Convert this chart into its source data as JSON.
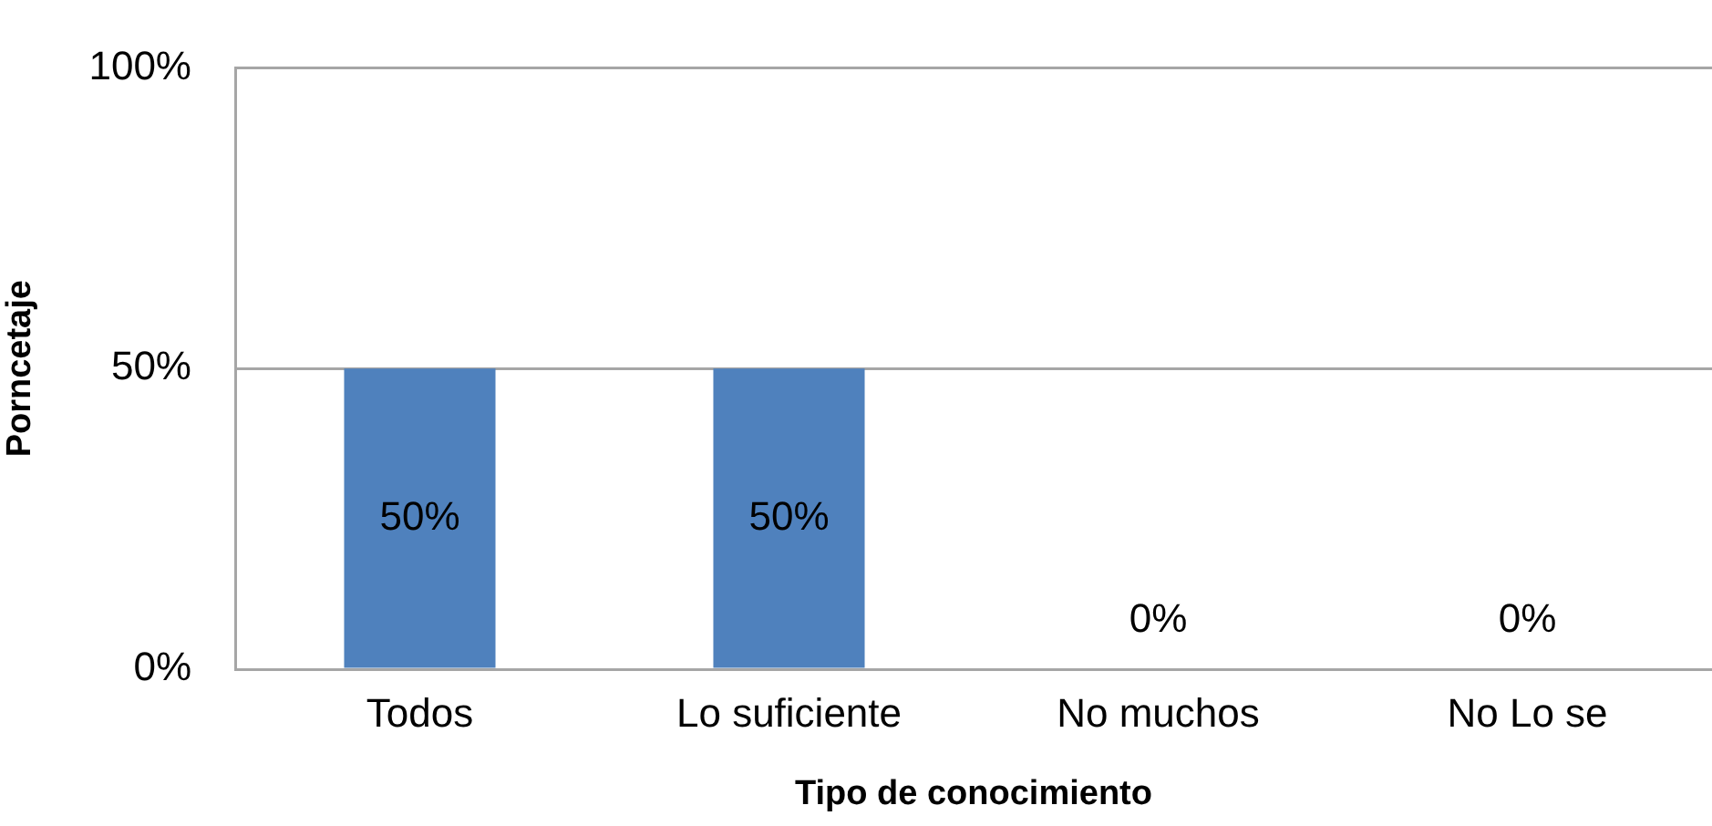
{
  "chart_data": {
    "type": "bar",
    "xlabel": "Tipo de conocimiento",
    "ylabel": "Porncetaje",
    "categories": [
      "Todos",
      "Lo suficiente",
      "No muchos",
      "No Lo se"
    ],
    "values": [
      50,
      50,
      0,
      0
    ],
    "color": "#4f81bd",
    "ylim": [
      0,
      100
    ],
    "yticks": [
      {
        "value": 0,
        "label": "0%"
      },
      {
        "value": 50,
        "label": "50%"
      },
      {
        "value": 100,
        "label": "100%"
      }
    ],
    "grid": "y",
    "legend": false,
    "value_labels": [
      "50%",
      "50%",
      "0%",
      "0%"
    ]
  }
}
